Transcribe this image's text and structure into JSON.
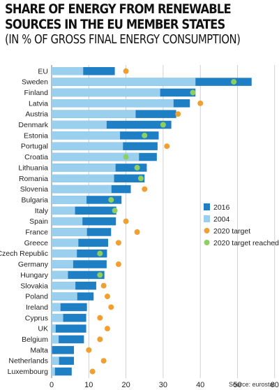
{
  "chart_data": {
    "type": "bar",
    "title": "SHARE OF ENERGY FROM RENEWABLE SOURCES IN THE EU MEMBER STATES",
    "subtitle": "(IN % OF GROSS FINAL ENERGY CONSUMPTION)",
    "categories": [
      "EU",
      "Sweden",
      "Finland",
      "Latvia",
      "Austria",
      "Denmark",
      "Estonia",
      "Portugal",
      "Croatia",
      "Lithuania",
      "Romania",
      "Slovenia",
      "Bulgaria",
      "Italy",
      "Spain",
      "France",
      "Greece",
      "Czech Republic",
      "Germany",
      "Hungary",
      "Slovakia",
      "Poland",
      "Ireland",
      "Cyprus",
      "UK",
      "Belgium",
      "Malta",
      "Netherlands",
      "Luxembourg"
    ],
    "series": [
      {
        "name": "2016",
        "type": "bar",
        "color": "#1f7fc4",
        "values": [
          17.0,
          53.8,
          38.7,
          37.2,
          33.5,
          32.2,
          28.8,
          28.5,
          28.3,
          25.6,
          25.0,
          21.3,
          18.8,
          17.4,
          17.3,
          16.0,
          15.2,
          14.9,
          14.8,
          14.2,
          12.0,
          11.3,
          9.5,
          9.3,
          9.3,
          8.7,
          6.0,
          6.0,
          5.4
        ]
      },
      {
        "name": "2004",
        "type": "bar",
        "color": "#9bcfee",
        "values": [
          8.5,
          38.7,
          29.2,
          32.8,
          22.6,
          14.8,
          18.4,
          19.2,
          23.5,
          17.2,
          16.8,
          16.1,
          9.4,
          6.3,
          8.3,
          9.5,
          7.2,
          6.8,
          5.8,
          4.4,
          6.4,
          6.9,
          2.4,
          3.1,
          1.1,
          1.9,
          0.1,
          2.0,
          0.9
        ]
      },
      {
        "name": "2020 target",
        "type": "dot",
        "color": "#f0a030",
        "values": [
          20,
          null,
          null,
          40,
          34,
          null,
          null,
          31,
          null,
          null,
          null,
          25,
          null,
          null,
          20,
          23,
          18,
          null,
          18,
          null,
          14,
          15,
          16,
          13,
          15,
          13,
          10,
          14,
          11
        ]
      },
      {
        "name": "2020 target reached",
        "type": "dot",
        "color": "#8ed060",
        "values": [
          null,
          49,
          38,
          null,
          null,
          30,
          25,
          null,
          20,
          23,
          24,
          null,
          16,
          17,
          null,
          null,
          null,
          13,
          null,
          13,
          null,
          null,
          null,
          null,
          null,
          null,
          null,
          null,
          null
        ]
      }
    ],
    "xlim": [
      0,
      60
    ],
    "xticks": [
      0,
      10,
      20,
      30,
      40,
      50,
      60
    ],
    "grid": true,
    "legend": "right"
  },
  "source": "Source: eurostat"
}
